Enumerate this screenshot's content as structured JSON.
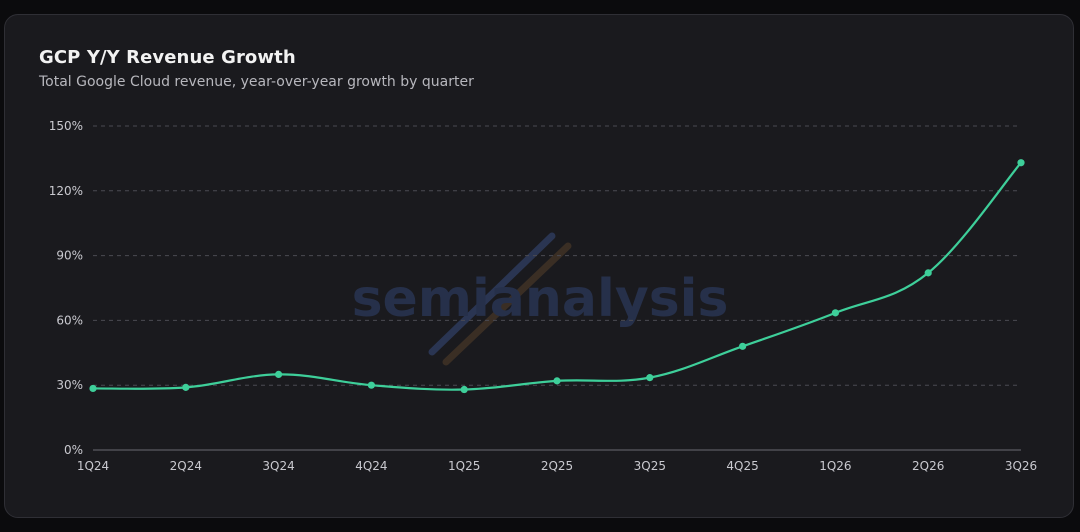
{
  "watermark": "semianalysis",
  "colors": {
    "line": "#3ecf9a",
    "background": "#1a1a1e",
    "grid": "#4a4a52"
  },
  "chart_data": {
    "type": "line",
    "title": "GCP Y/Y Revenue Growth",
    "subtitle": "Total Google Cloud revenue, year-over-year growth by quarter",
    "xlabel": "",
    "ylabel": "",
    "categories": [
      "1Q24",
      "2Q24",
      "3Q24",
      "4Q24",
      "1Q25",
      "2Q25",
      "3Q25",
      "4Q25",
      "1Q26",
      "2Q26",
      "3Q26"
    ],
    "series": [
      {
        "values": [
          28.5,
          29,
          35,
          30,
          28,
          32,
          33.5,
          48,
          63.5,
          82,
          133
        ]
      }
    ],
    "ylim": [
      0,
      150
    ],
    "yticks": [
      0,
      30,
      60,
      90,
      120,
      150
    ],
    "ytick_labels": [
      "0%",
      "30%",
      "60%",
      "90%",
      "120%",
      "150%"
    ],
    "grid": true,
    "legend": "none"
  }
}
